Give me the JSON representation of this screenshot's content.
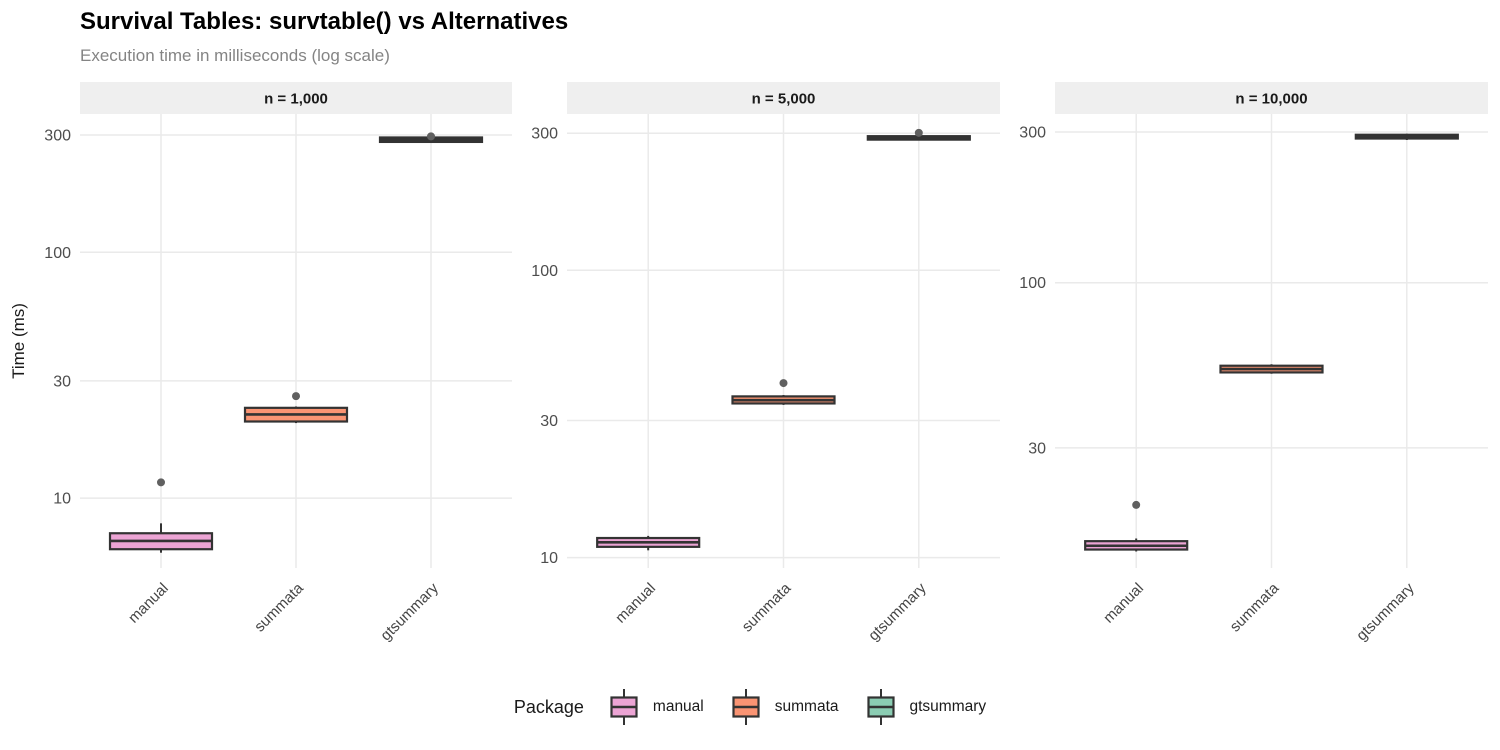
{
  "title": "Survival Tables: survtable() vs Alternatives",
  "subtitle": "Execution time in milliseconds (log scale)",
  "y_axis_title": "Time (ms)",
  "legend": {
    "title": "Package",
    "entries": [
      {
        "label": "manual",
        "fill": "#ECA4D4"
      },
      {
        "label": "summata",
        "fill": "#FA9473"
      },
      {
        "label": "gtsummary",
        "fill": "#8BCDB3"
      }
    ]
  },
  "chart_data": {
    "type": "boxplot",
    "scale": "log10",
    "ylabel": "Time (ms)",
    "categories": [
      "manual",
      "summata",
      "gtsummary"
    ],
    "legend_position": "bottom",
    "facets": [
      {
        "label": "n = 1,000",
        "yticks": [
          300,
          100,
          30,
          10
        ],
        "ylim": [
          5.2,
          365
        ],
        "boxes": [
          {
            "category": "manual",
            "whisker_low": 6.0,
            "q1": 6.2,
            "median": 6.7,
            "q3": 7.2,
            "whisker_high": 7.9,
            "outliers": [
              11.6
            ]
          },
          {
            "category": "summata",
            "whisker_low": 20.2,
            "q1": 20.5,
            "median": 21.9,
            "q3": 23.3,
            "whisker_high": 23.6,
            "outliers": [
              26.0
            ]
          },
          {
            "category": "gtsummary",
            "whisker_low": 279,
            "q1": 281,
            "median": 287,
            "q3": 293,
            "whisker_high": 295,
            "outliers": [
              296
            ]
          }
        ]
      },
      {
        "label": "n = 5,000",
        "yticks": [
          300,
          100,
          30,
          10
        ],
        "ylim": [
          9.2,
          350
        ],
        "boxes": [
          {
            "category": "manual",
            "whisker_low": 10.6,
            "q1": 10.9,
            "median": 11.3,
            "q3": 11.7,
            "whisker_high": 11.9,
            "outliers": []
          },
          {
            "category": "summata",
            "whisker_low": 34.0,
            "q1": 34.4,
            "median": 35.3,
            "q3": 36.4,
            "whisker_high": 36.8,
            "outliers": [
              40.5
            ]
          },
          {
            "category": "gtsummary",
            "whisker_low": 283,
            "q1": 285,
            "median": 289,
            "q3": 293,
            "whisker_high": 295,
            "outliers": [
              301
            ]
          }
        ]
      },
      {
        "label": "n = 10,000",
        "yticks": [
          300,
          100,
          30
        ],
        "ylim": [
          12.5,
          342
        ],
        "boxes": [
          {
            "category": "manual",
            "whisker_low": 14.1,
            "q1": 14.3,
            "median": 14.7,
            "q3": 15.2,
            "whisker_high": 15.5,
            "outliers": [
              19.8
            ]
          },
          {
            "category": "summata",
            "whisker_low": 51.5,
            "q1": 52.0,
            "median": 53.3,
            "q3": 54.6,
            "whisker_high": 55.2,
            "outliers": []
          },
          {
            "category": "gtsummary",
            "whisker_low": 283,
            "q1": 286,
            "median": 290,
            "q3": 294,
            "whisker_high": 296,
            "outliers": []
          }
        ]
      }
    ]
  },
  "colors": {
    "box_border": "#333333",
    "outlier": "#606060",
    "gridline": "#eaeaea",
    "strip_bg": "#efefef",
    "axis_text": "#4d4d4d",
    "subtitle_text": "#848484"
  }
}
